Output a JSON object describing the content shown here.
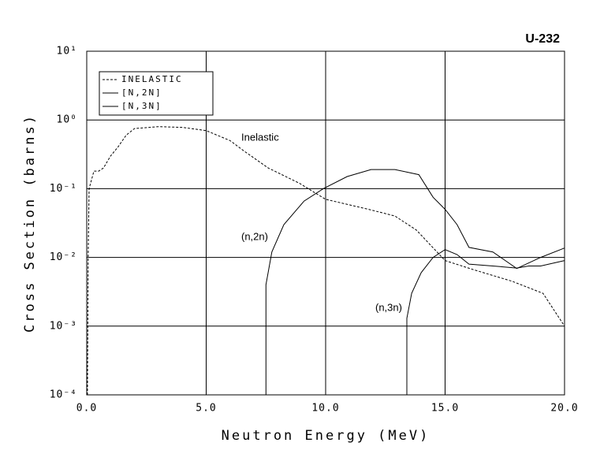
{
  "chart_data": {
    "type": "line",
    "title": "U-232",
    "x_label": "Neutron Energy (MeV)",
    "y_label": "Cross Section (barns)",
    "y_scale": "log",
    "grid": true,
    "legend_position": "upper left",
    "xlim": [
      0,
      20
    ],
    "ylim": [
      0.0001,
      10
    ],
    "xticks": [
      {
        "value": 0,
        "label": "0.0"
      },
      {
        "value": 5,
        "label": "5.0"
      },
      {
        "value": 10,
        "label": "10.0"
      },
      {
        "value": 15,
        "label": "15.0"
      },
      {
        "value": 20,
        "label": "20.0"
      }
    ],
    "yticks": [
      {
        "value": 0.0001,
        "label": "10⁻⁴"
      },
      {
        "value": 0.001,
        "label": "10⁻³"
      },
      {
        "value": 0.01,
        "label": "10⁻²"
      },
      {
        "value": 0.1,
        "label": "10⁻¹"
      },
      {
        "value": 1,
        "label": "10⁰"
      },
      {
        "value": 10,
        "label": "10¹"
      }
    ],
    "series": [
      {
        "name": "INELASTIC",
        "color": "#000000",
        "dashed": true,
        "x": [
          0.03,
          0.06,
          0.1,
          0.3,
          0.5,
          0.7,
          1.0,
          1.3,
          1.65,
          2.0,
          3.0,
          4.0,
          5.0,
          6.0,
          6.6,
          7.6,
          8.9,
          10.0,
          11.8,
          12.9,
          13.8,
          15.0,
          16.2,
          17.8,
          19.1,
          20
        ],
        "values": [
          0.0001,
          0.01,
          0.1,
          0.18,
          0.18,
          0.2,
          0.3,
          0.4,
          0.6,
          0.75,
          0.8,
          0.78,
          0.7,
          0.5,
          0.35,
          0.2,
          0.12,
          0.07,
          0.05,
          0.04,
          0.025,
          0.009,
          0.0066,
          0.0045,
          0.003,
          0.001
        ]
      },
      {
        "name": "[N,2N]",
        "color": "#000000",
        "dashed": false,
        "x": [
          7.5,
          7.5,
          7.75,
          8.25,
          9.1,
          9.9,
          10.9,
          11.9,
          12.9,
          13.9,
          14.5,
          15.0,
          15.5,
          16.0,
          17.0,
          18.0,
          19.0,
          20
        ],
        "values": [
          0.0001,
          0.004,
          0.012,
          0.03,
          0.066,
          0.1,
          0.15,
          0.19,
          0.19,
          0.16,
          0.075,
          0.05,
          0.03,
          0.014,
          0.012,
          0.0069,
          0.01,
          0.0137
        ]
      },
      {
        "name": "[N,3N]",
        "color": "#000000",
        "dashed": false,
        "x": [
          13.4,
          13.4,
          13.6,
          14.0,
          14.5,
          15.0,
          15.5,
          16.0,
          17.0,
          18.0,
          18.5,
          19.0,
          20
        ],
        "values": [
          0.0001,
          0.0013,
          0.003,
          0.006,
          0.01,
          0.013,
          0.011,
          0.008,
          0.0075,
          0.007,
          0.0075,
          0.0075,
          0.009
        ]
      }
    ],
    "annotations": [
      "Inelastic",
      "(n,2n)",
      "(n,3n)"
    ]
  }
}
